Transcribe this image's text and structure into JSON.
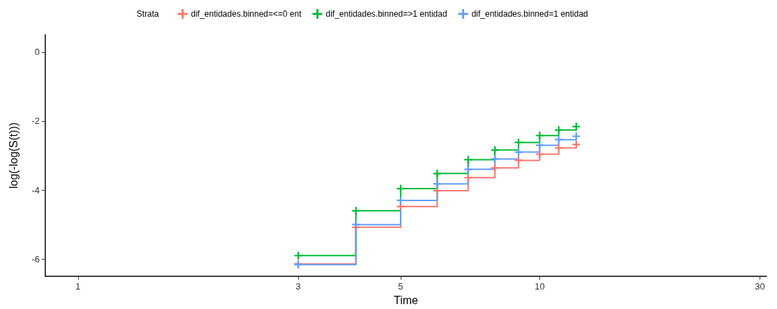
{
  "chart_data": {
    "type": "step",
    "xlabel": "Time",
    "ylabel": "log(-log(S(t)))",
    "legend_title": "Strata",
    "legend": "top",
    "marker": "cross",
    "line_style": "solid",
    "grid": false,
    "log": "x",
    "xlim": [
      0.85,
      31
    ],
    "xticks": [
      1,
      3,
      5,
      10,
      30
    ],
    "ylim": [
      -6.5,
      0.5
    ],
    "yticks": [
      -6,
      -4,
      -2,
      0
    ],
    "x": [
      3,
      4,
      5,
      6,
      7,
      8,
      9,
      10,
      11,
      12
    ],
    "series": [
      {
        "name": "dif_entidades.binned=<=0 ent",
        "color": "#f8766d",
        "values": [
          -6.14,
          -5.08,
          -4.48,
          -4.02,
          -3.64,
          -3.36,
          -3.14,
          -2.96,
          -2.78,
          -2.68
        ]
      },
      {
        "name": "dif_entidades.binned=>1 entidad",
        "color": "#00ba38",
        "values": [
          -5.9,
          -4.6,
          -3.96,
          -3.52,
          -3.12,
          -2.84,
          -2.62,
          -2.42,
          -2.26,
          -2.16
        ]
      },
      {
        "name": "dif_entidades.binned=1 entidad",
        "color": "#619cff",
        "values": [
          -6.16,
          -5.0,
          -4.3,
          -3.82,
          -3.4,
          -3.1,
          -2.9,
          -2.7,
          -2.54,
          -2.44
        ]
      }
    ]
  }
}
